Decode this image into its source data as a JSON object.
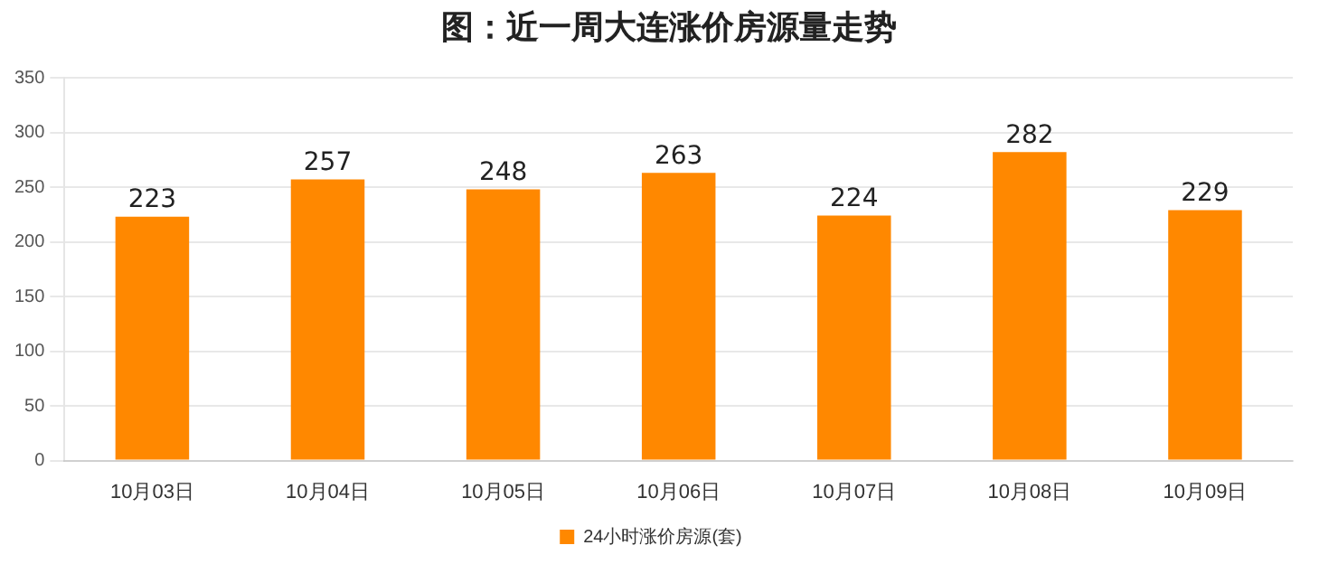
{
  "chart_data": {
    "type": "bar",
    "title": "图：近一周大连涨价房源量走势",
    "categories": [
      "10月03日",
      "10月04日",
      "10月05日",
      "10月06日",
      "10月07日",
      "10月08日",
      "10月09日"
    ],
    "series": [
      {
        "name": "24小时涨价房源(套)",
        "color": "#ff8800",
        "values": [
          223,
          257,
          248,
          263,
          224,
          282,
          229
        ]
      }
    ],
    "ylim": [
      0,
      350
    ],
    "yticks": [
      0,
      50,
      100,
      150,
      200,
      250,
      300,
      350
    ],
    "grid": "y",
    "legend": "bottom",
    "data_labels": true
  }
}
